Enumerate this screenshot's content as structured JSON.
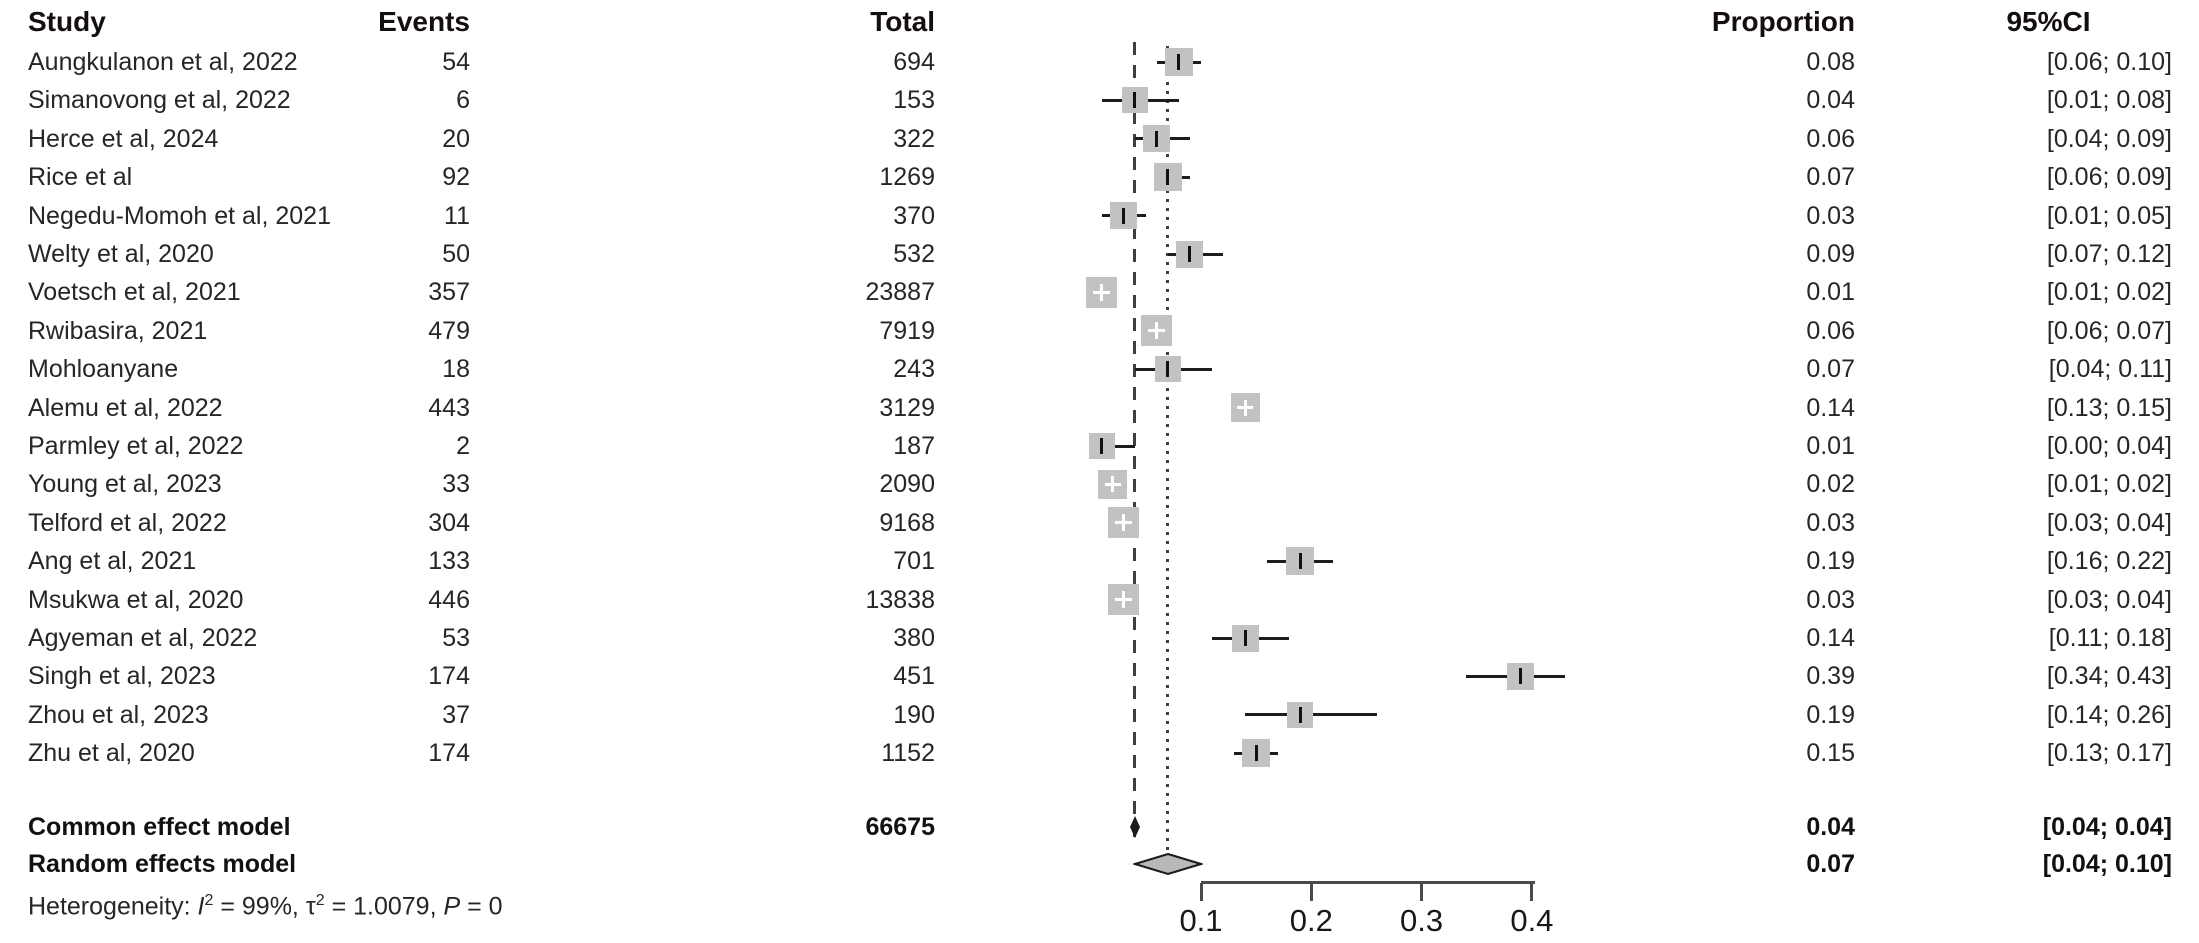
{
  "chart_data": {
    "type": "forest",
    "columns": {
      "study": "Study",
      "events": "Events",
      "total": "Total",
      "proportion": "Proportion",
      "ci": "95%CI"
    },
    "rows": [
      {
        "study": "Aungkulanon et al, 2022",
        "events": "54",
        "total": "694",
        "proportion": "0.08",
        "ci": "[0.06; 0.10]"
      },
      {
        "study": "Simanovong et al, 2022",
        "events": "6",
        "total": "153",
        "proportion": "0.04",
        "ci": "[0.01; 0.08]"
      },
      {
        "study": "Herce et al, 2024",
        "events": "20",
        "total": "322",
        "proportion": "0.06",
        "ci": "[0.04; 0.09]"
      },
      {
        "study": "Rice et al",
        "events": "92",
        "total": "1269",
        "proportion": "0.07",
        "ci": "[0.06; 0.09]"
      },
      {
        "study": "Negedu-Momoh et al, 2021",
        "events": "11",
        "total": "370",
        "proportion": "0.03",
        "ci": "[0.01; 0.05]"
      },
      {
        "study": "Welty et al, 2020",
        "events": "50",
        "total": "532",
        "proportion": "0.09",
        "ci": "[0.07; 0.12]"
      },
      {
        "study": "Voetsch et al, 2021",
        "events": "357",
        "total": "23887",
        "proportion": "0.01",
        "ci": "[0.01; 0.02]"
      },
      {
        "study": "Rwibasira, 2021",
        "events": "479",
        "total": "7919",
        "proportion": "0.06",
        "ci": "[0.06; 0.07]"
      },
      {
        "study": "Mohloanyane",
        "events": "18",
        "total": "243",
        "proportion": "0.07",
        "ci": "[0.04; 0.11]"
      },
      {
        "study": "Alemu et al, 2022",
        "events": "443",
        "total": "3129",
        "proportion": "0.14",
        "ci": "[0.13; 0.15]"
      },
      {
        "study": "Parmley et al, 2022",
        "events": "2",
        "total": "187",
        "proportion": "0.01",
        "ci": "[0.00; 0.04]"
      },
      {
        "study": "Young et al, 2023",
        "events": "33",
        "total": "2090",
        "proportion": "0.02",
        "ci": "[0.01; 0.02]"
      },
      {
        "study": "Telford et al, 2022",
        "events": "304",
        "total": "9168",
        "proportion": "0.03",
        "ci": "[0.03; 0.04]"
      },
      {
        "study": "Ang et al, 2021",
        "events": "133",
        "total": "701",
        "proportion": "0.19",
        "ci": "[0.16; 0.22]"
      },
      {
        "study": "Msukwa et al, 2020",
        "events": "446",
        "total": "13838",
        "proportion": "0.03",
        "ci": "[0.03; 0.04]"
      },
      {
        "study": "Agyeman et al, 2022",
        "events": "53",
        "total": "380",
        "proportion": "0.14",
        "ci": "[0.11; 0.18]"
      },
      {
        "study": "Singh et al, 2023",
        "events": "174",
        "total": "451",
        "proportion": "0.39",
        "ci": "[0.34; 0.43]"
      },
      {
        "study": "Zhou et al, 2023",
        "events": "37",
        "total": "190",
        "proportion": "0.19",
        "ci": "[0.14; 0.26]"
      },
      {
        "study": "Zhu et al, 2020",
        "events": "174",
        "total": "1152",
        "proportion": "0.15",
        "ci": "[0.13; 0.17]"
      }
    ],
    "summary": [
      {
        "label": "Common effect model",
        "total": "66675",
        "proportion": "0.04",
        "ci": "[0.04; 0.04]"
      },
      {
        "label": "Random effects model",
        "total": "",
        "proportion": "0.07",
        "ci": "[0.04; 0.10]"
      }
    ],
    "heterogeneity": {
      "parts": [
        {
          "t": "Heterogeneity: "
        },
        {
          "t": "I"
        },
        {
          "t": "2"
        },
        {
          "t": " = 99%, "
        },
        {
          "t": "τ"
        },
        {
          "t": "2"
        },
        {
          "t": " = 1.0079, "
        },
        {
          "t": "P"
        },
        {
          "t": " = 0"
        }
      ]
    },
    "x_axis": {
      "tick_labels": [
        "0.1",
        "0.2",
        "0.3",
        "0.4"
      ],
      "grid": false,
      "scale_note": "linear proportion axis"
    },
    "reference_lines": {
      "common_effect": 0.04,
      "random_effects": 0.07
    }
  }
}
